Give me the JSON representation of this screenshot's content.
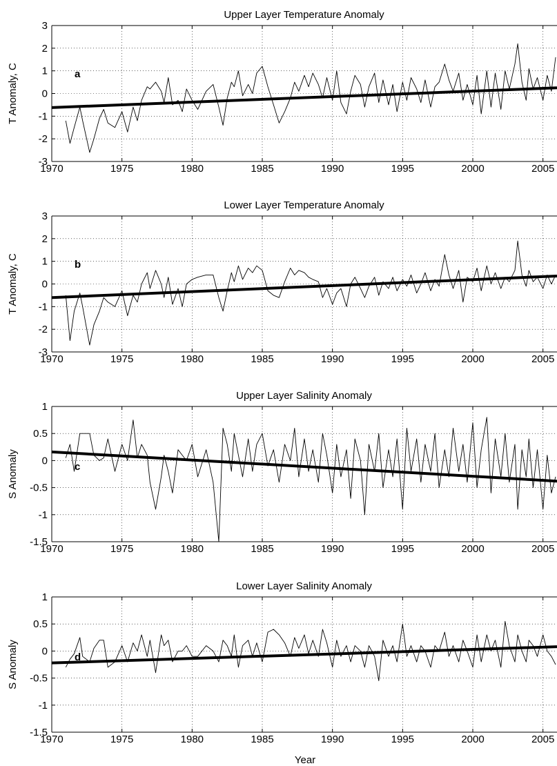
{
  "figure": {
    "xlabel": "Year"
  },
  "chart_data": [
    {
      "id": "a",
      "type": "line",
      "title": "Upper Layer Temperature Anomaly",
      "ylabel": "T Anomaly, C",
      "panel_label": "a",
      "xlim": [
        1970,
        2006
      ],
      "ylim": [
        -3,
        3
      ],
      "xticks": [
        1970,
        1975,
        1980,
        1985,
        1990,
        1995,
        2000,
        2005
      ],
      "yticks": [
        -3,
        -2,
        -1,
        0,
        1,
        2,
        3
      ],
      "grid": true,
      "series": [
        {
          "x": [
            1971.0,
            1971.3,
            1971.6,
            1972.0,
            1972.2,
            1972.7,
            1973.0,
            1973.4,
            1973.7,
            1974.0,
            1974.5,
            1975.0,
            1975.4,
            1975.8,
            1976.1,
            1976.4,
            1976.8,
            1977.0,
            1977.4,
            1977.8,
            1978.0,
            1978.3,
            1978.6,
            1979.0,
            1979.3,
            1979.6,
            1980.0,
            1980.4,
            1981.0,
            1981.5,
            1981.9,
            1982.2,
            1982.5,
            1982.8,
            1983.0,
            1983.3,
            1983.6,
            1984.0,
            1984.3,
            1984.6,
            1985.0,
            1985.4,
            1985.8,
            1986.2,
            1986.6,
            1987.0,
            1987.3,
            1987.6,
            1988.0,
            1988.3,
            1988.6,
            1989.0,
            1989.3,
            1989.6,
            1990.0,
            1990.3,
            1990.6,
            1991.0,
            1991.3,
            1991.6,
            1992.0,
            1992.3,
            1992.6,
            1993.0,
            1993.3,
            1993.6,
            1994.0,
            1994.3,
            1994.6,
            1995.0,
            1995.3,
            1995.6,
            1996.0,
            1996.3,
            1996.6,
            1997.0,
            1997.3,
            1997.6,
            1998.0,
            1998.3,
            1998.6,
            1999.0,
            1999.3,
            1999.6,
            2000.0,
            2000.3,
            2000.6,
            2001.0,
            2001.3,
            2001.6,
            2002.0,
            2002.3,
            2002.6,
            2003.0,
            2003.2,
            2003.5,
            2003.8,
            2004.0,
            2004.3,
            2004.6,
            2005.0,
            2005.3,
            2005.6,
            2005.9
          ],
          "y": [
            -1.2,
            -2.2,
            -1.5,
            -0.6,
            -1.2,
            -2.6,
            -2.0,
            -1.1,
            -0.7,
            -1.3,
            -1.5,
            -0.8,
            -1.7,
            -0.6,
            -1.2,
            -0.3,
            0.3,
            0.2,
            0.5,
            0.1,
            -0.4,
            0.7,
            -0.5,
            -0.3,
            -0.8,
            0.2,
            -0.3,
            -0.7,
            0.1,
            0.4,
            -0.6,
            -1.4,
            -0.2,
            0.5,
            0.3,
            1.0,
            -0.1,
            0.4,
            0.0,
            0.9,
            1.2,
            0.3,
            -0.5,
            -1.3,
            -0.8,
            -0.2,
            0.5,
            0.1,
            0.8,
            0.3,
            0.9,
            0.4,
            -0.2,
            0.7,
            -0.3,
            1.0,
            -0.4,
            -0.9,
            0.1,
            0.8,
            0.4,
            -0.6,
            0.3,
            0.9,
            -0.4,
            0.6,
            -0.5,
            0.4,
            -0.8,
            0.5,
            -0.3,
            0.7,
            0.2,
            -0.4,
            0.6,
            -0.6,
            0.3,
            0.5,
            1.3,
            0.6,
            0.1,
            0.9,
            -0.3,
            0.4,
            -0.5,
            0.8,
            -0.9,
            1.0,
            -0.6,
            0.9,
            -0.7,
            1.0,
            0.2,
            1.3,
            2.2,
            0.5,
            -0.3,
            1.1,
            0.2,
            0.7,
            -0.3,
            0.8,
            0.1,
            1.6
          ]
        }
      ],
      "trend": {
        "x": [
          1970,
          2006
        ],
        "y": [
          -0.62,
          0.25
        ]
      }
    },
    {
      "id": "b",
      "type": "line",
      "title": "Lower Layer Temperature Anomaly",
      "ylabel": "T Anomaly, C",
      "panel_label": "b",
      "xlim": [
        1970,
        2006
      ],
      "ylim": [
        -3,
        3
      ],
      "xticks": [
        1970,
        1975,
        1980,
        1985,
        1990,
        1995,
        2000,
        2005
      ],
      "yticks": [
        -3,
        -2,
        -1,
        0,
        1,
        2,
        3
      ],
      "grid": true,
      "series": [
        {
          "x": [
            1971.0,
            1971.3,
            1971.6,
            1972.0,
            1972.2,
            1972.7,
            1973.0,
            1973.4,
            1973.7,
            1974.0,
            1974.5,
            1975.0,
            1975.4,
            1975.8,
            1976.1,
            1976.4,
            1976.8,
            1977.0,
            1977.4,
            1977.8,
            1978.0,
            1978.3,
            1978.6,
            1979.0,
            1979.3,
            1979.6,
            1980.0,
            1980.4,
            1981.0,
            1981.5,
            1981.9,
            1982.2,
            1982.5,
            1982.8,
            1983.0,
            1983.3,
            1983.6,
            1984.0,
            1984.3,
            1984.6,
            1985.0,
            1985.4,
            1985.8,
            1986.2,
            1986.6,
            1987.0,
            1987.3,
            1987.6,
            1988.0,
            1988.3,
            1988.6,
            1989.0,
            1989.3,
            1989.6,
            1990.0,
            1990.3,
            1990.6,
            1991.0,
            1991.3,
            1991.6,
            1992.0,
            1992.3,
            1992.6,
            1993.0,
            1993.3,
            1993.6,
            1994.0,
            1994.3,
            1994.6,
            1995.0,
            1995.3,
            1995.6,
            1996.0,
            1996.3,
            1996.6,
            1997.0,
            1997.3,
            1997.6,
            1998.0,
            1998.3,
            1998.6,
            1999.0,
            1999.3,
            1999.6,
            2000.0,
            2000.3,
            2000.6,
            2001.0,
            2001.3,
            2001.6,
            2002.0,
            2002.3,
            2002.6,
            2003.0,
            2003.2,
            2003.5,
            2003.8,
            2004.0,
            2004.3,
            2004.6,
            2005.0,
            2005.3,
            2005.6,
            2005.9
          ],
          "y": [
            -0.5,
            -2.5,
            -1.2,
            -0.4,
            -1.0,
            -2.7,
            -1.8,
            -1.2,
            -0.6,
            -0.8,
            -1.0,
            -0.3,
            -1.4,
            -0.5,
            -0.8,
            0.0,
            0.5,
            -0.2,
            0.6,
            0.0,
            -0.6,
            0.3,
            -0.9,
            -0.2,
            -1.0,
            0.0,
            0.2,
            0.3,
            0.4,
            0.4,
            -0.6,
            -1.2,
            -0.3,
            0.5,
            0.1,
            0.8,
            0.2,
            0.7,
            0.5,
            0.8,
            0.6,
            -0.3,
            -0.5,
            -0.6,
            0.1,
            0.7,
            0.4,
            0.6,
            0.5,
            0.3,
            0.2,
            0.1,
            -0.6,
            -0.2,
            -0.9,
            -0.4,
            -0.2,
            -1.0,
            0.0,
            0.3,
            -0.2,
            -0.6,
            -0.1,
            0.3,
            -0.5,
            0.1,
            -0.2,
            0.3,
            -0.3,
            0.2,
            -0.1,
            0.4,
            -0.4,
            0.0,
            0.5,
            -0.3,
            0.2,
            -0.1,
            1.3,
            0.4,
            -0.2,
            0.6,
            -0.8,
            0.3,
            0.1,
            0.7,
            -0.3,
            0.8,
            0.0,
            0.5,
            -0.2,
            0.3,
            0.1,
            0.6,
            1.9,
            0.4,
            -0.1,
            0.6,
            0.1,
            0.3,
            -0.2,
            0.4,
            0.0,
            0.4
          ]
        }
      ],
      "trend": {
        "x": [
          1970,
          2006
        ],
        "y": [
          -0.6,
          0.35
        ]
      }
    },
    {
      "id": "c",
      "type": "line",
      "title": "Upper Layer Salinity Anomaly",
      "ylabel": "S Anomaly",
      "panel_label": "c",
      "xlim": [
        1970,
        2006
      ],
      "ylim": [
        -1.5,
        1
      ],
      "xticks": [
        1970,
        1975,
        1980,
        1985,
        1990,
        1995,
        2000,
        2005
      ],
      "yticks": [
        -1.5,
        -1,
        -0.5,
        0,
        0.5,
        1
      ],
      "grid": true,
      "series": [
        {
          "x": [
            1971.0,
            1971.3,
            1971.6,
            1972.0,
            1972.2,
            1972.7,
            1973.0,
            1973.4,
            1973.7,
            1974.0,
            1974.5,
            1975.0,
            1975.4,
            1975.8,
            1976.1,
            1976.4,
            1976.8,
            1977.0,
            1977.4,
            1977.8,
            1978.0,
            1978.3,
            1978.6,
            1979.0,
            1979.3,
            1979.6,
            1980.0,
            1980.4,
            1981.0,
            1981.5,
            1981.9,
            1982.2,
            1982.5,
            1982.8,
            1983.0,
            1983.3,
            1983.6,
            1984.0,
            1984.3,
            1984.6,
            1985.0,
            1985.4,
            1985.8,
            1986.2,
            1986.6,
            1987.0,
            1987.3,
            1987.6,
            1988.0,
            1988.3,
            1988.6,
            1989.0,
            1989.3,
            1989.6,
            1990.0,
            1990.3,
            1990.6,
            1991.0,
            1991.3,
            1991.6,
            1992.0,
            1992.3,
            1992.6,
            1993.0,
            1993.3,
            1993.6,
            1994.0,
            1994.3,
            1994.6,
            1995.0,
            1995.3,
            1995.6,
            1996.0,
            1996.3,
            1996.6,
            1997.0,
            1997.3,
            1997.6,
            1998.0,
            1998.3,
            1998.6,
            1999.0,
            1999.3,
            1999.6,
            2000.0,
            2000.3,
            2000.6,
            2001.0,
            2001.3,
            2001.6,
            2002.0,
            2002.3,
            2002.6,
            2003.0,
            2003.2,
            2003.5,
            2003.8,
            2004.0,
            2004.3,
            2004.6,
            2005.0,
            2005.3,
            2005.6,
            2005.9
          ],
          "y": [
            0.05,
            0.3,
            -0.2,
            0.5,
            0.5,
            0.5,
            0.1,
            0.0,
            0.05,
            0.4,
            -0.2,
            0.3,
            0.0,
            0.75,
            0.05,
            0.3,
            0.1,
            -0.4,
            -0.9,
            -0.3,
            0.1,
            -0.2,
            -0.6,
            0.2,
            0.1,
            0.0,
            0.3,
            -0.3,
            0.2,
            -0.4,
            -1.5,
            0.6,
            0.3,
            -0.2,
            0.5,
            0.1,
            -0.3,
            0.4,
            -0.2,
            0.3,
            0.5,
            -0.1,
            0.2,
            -0.4,
            0.3,
            0.0,
            0.6,
            -0.3,
            0.4,
            -0.2,
            0.2,
            -0.4,
            0.5,
            0.1,
            -0.6,
            0.3,
            -0.3,
            0.2,
            -0.7,
            0.4,
            0.0,
            -1.0,
            0.3,
            -0.2,
            0.5,
            -0.5,
            0.2,
            -0.3,
            0.4,
            -0.9,
            0.6,
            -0.2,
            0.4,
            -0.4,
            0.3,
            -0.2,
            0.5,
            -0.5,
            0.2,
            -0.3,
            0.6,
            -0.2,
            0.3,
            -0.4,
            0.7,
            -0.5,
            0.2,
            0.8,
            -0.6,
            0.4,
            -0.3,
            0.5,
            -0.4,
            0.3,
            -0.9,
            0.2,
            -0.3,
            0.4,
            -0.5,
            0.2,
            -0.9,
            0.1,
            -0.6,
            -0.3
          ]
        }
      ],
      "trend": {
        "x": [
          1970,
          2006
        ],
        "y": [
          0.16,
          -0.38
        ]
      }
    },
    {
      "id": "d",
      "type": "line",
      "title": "Lower Layer Salinity Anomaly",
      "ylabel": "S Anomaly",
      "panel_label": "d",
      "xlim": [
        1970,
        2006
      ],
      "ylim": [
        -1.5,
        1
      ],
      "xticks": [
        1970,
        1975,
        1980,
        1985,
        1990,
        1995,
        2000,
        2005
      ],
      "yticks": [
        -1.5,
        -1,
        -0.5,
        0,
        0.5,
        1
      ],
      "grid": true,
      "series": [
        {
          "x": [
            1971.0,
            1971.3,
            1971.6,
            1972.0,
            1972.2,
            1972.7,
            1973.0,
            1973.4,
            1973.7,
            1974.0,
            1974.5,
            1975.0,
            1975.4,
            1975.8,
            1976.1,
            1976.4,
            1976.8,
            1977.0,
            1977.4,
            1977.8,
            1978.0,
            1978.3,
            1978.6,
            1979.0,
            1979.3,
            1979.6,
            1980.0,
            1980.4,
            1981.0,
            1981.5,
            1981.9,
            1982.2,
            1982.5,
            1982.8,
            1983.0,
            1983.3,
            1983.6,
            1984.0,
            1984.3,
            1984.6,
            1985.0,
            1985.4,
            1985.8,
            1986.2,
            1986.6,
            1987.0,
            1987.3,
            1987.6,
            1988.0,
            1988.3,
            1988.6,
            1989.0,
            1989.3,
            1989.6,
            1990.0,
            1990.3,
            1990.6,
            1991.0,
            1991.3,
            1991.6,
            1992.0,
            1992.3,
            1992.6,
            1993.0,
            1993.3,
            1993.6,
            1994.0,
            1994.3,
            1994.6,
            1995.0,
            1995.3,
            1995.6,
            1996.0,
            1996.3,
            1996.6,
            1997.0,
            1997.3,
            1997.6,
            1998.0,
            1998.3,
            1998.6,
            1999.0,
            1999.3,
            1999.6,
            2000.0,
            2000.3,
            2000.6,
            2001.0,
            2001.3,
            2001.6,
            2002.0,
            2002.3,
            2002.6,
            2003.0,
            2003.2,
            2003.5,
            2003.8,
            2004.0,
            2004.3,
            2004.6,
            2005.0,
            2005.3,
            2005.6,
            2005.9
          ],
          "y": [
            -0.3,
            -0.15,
            -0.05,
            0.25,
            -0.1,
            -0.2,
            0.05,
            0.2,
            0.2,
            -0.3,
            -0.2,
            0.1,
            -0.2,
            0.15,
            0.0,
            0.3,
            -0.1,
            0.2,
            -0.4,
            0.3,
            0.1,
            0.2,
            -0.2,
            0.0,
            0.0,
            0.1,
            -0.1,
            -0.1,
            0.1,
            0.0,
            -0.2,
            0.2,
            0.1,
            -0.1,
            0.3,
            -0.3,
            0.1,
            0.2,
            -0.1,
            0.15,
            -0.2,
            0.35,
            0.4,
            0.3,
            0.15,
            -0.1,
            0.25,
            0.05,
            0.3,
            -0.05,
            0.2,
            -0.1,
            0.4,
            0.15,
            -0.3,
            0.2,
            -0.1,
            0.1,
            -0.2,
            0.1,
            0.0,
            -0.3,
            0.1,
            -0.1,
            -0.55,
            0.2,
            -0.1,
            0.1,
            -0.2,
            0.5,
            -0.1,
            0.1,
            -0.2,
            0.1,
            0.0,
            -0.3,
            0.1,
            0.0,
            0.35,
            -0.1,
            0.1,
            -0.2,
            0.2,
            0.0,
            -0.3,
            0.3,
            -0.2,
            0.3,
            0.0,
            0.2,
            -0.3,
            0.55,
            0.1,
            -0.2,
            0.3,
            0.0,
            -0.2,
            0.2,
            0.1,
            -0.1,
            0.3,
            0.0,
            -0.1,
            -0.25
          ]
        }
      ],
      "trend": {
        "x": [
          1970,
          2006
        ],
        "y": [
          -0.22,
          0.08
        ]
      }
    }
  ]
}
